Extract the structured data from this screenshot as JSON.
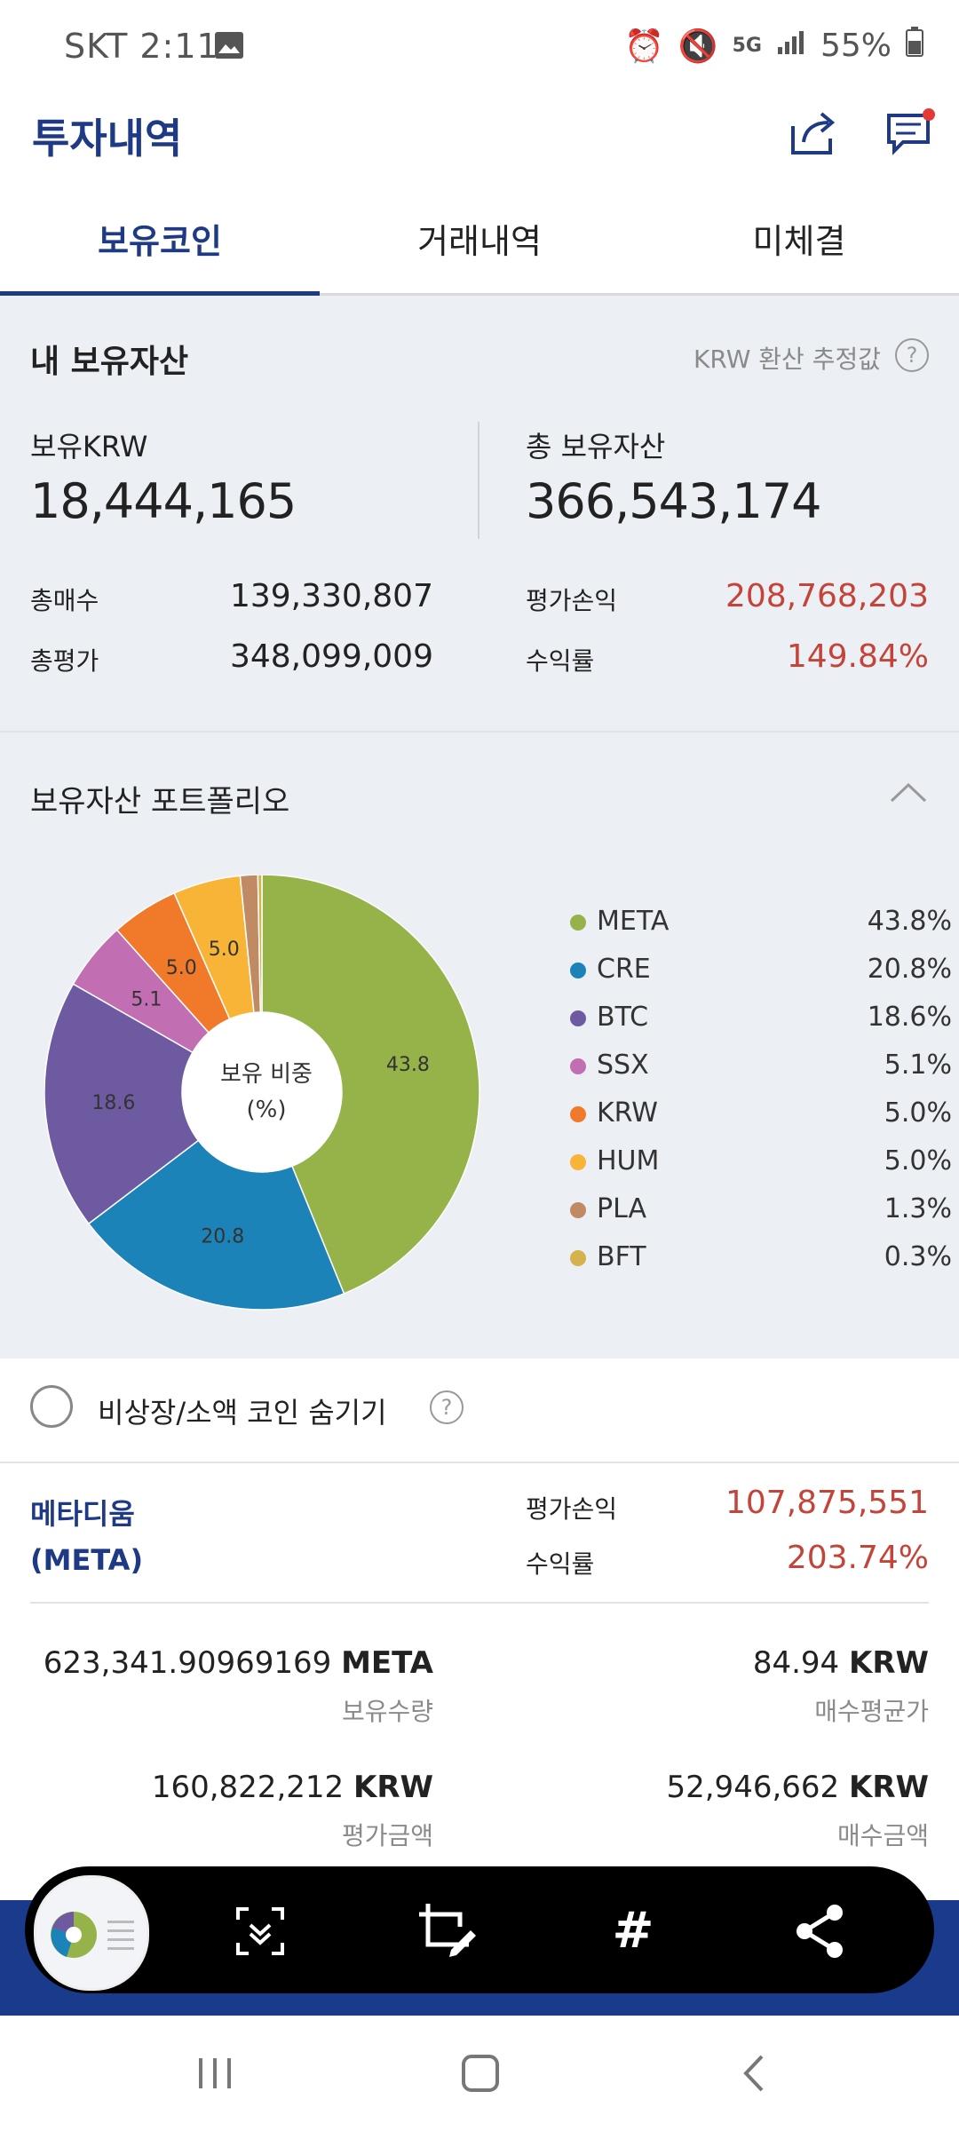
{
  "status_bar": {
    "carrier_time": "SKT 2:11",
    "battery": "55%",
    "network": "5G"
  },
  "header": {
    "title": "투자내역"
  },
  "tabs": [
    "보유코인",
    "거래내역",
    "미체결"
  ],
  "summary": {
    "title": "내 보유자산",
    "note": "KRW 환산 추정값",
    "krw_label": "보유KRW",
    "krw_value": "18,444,165",
    "total_label": "총 보유자산",
    "total_value": "366,543,174",
    "buy_label": "총매수",
    "buy_value": "139,330,807",
    "eval_label": "총평가",
    "eval_value": "348,099,009",
    "pl_label": "평가손익",
    "pl_value": "208,768,203",
    "rate_label": "수익률",
    "rate_value": "149.84%"
  },
  "portfolio": {
    "title": "보유자산 포트폴리오",
    "center_label_1": "보유 비중",
    "center_label_2": "(%)",
    "slice_labels": [
      "43.8",
      "20.8",
      "18.6",
      "5.1",
      "5.0",
      "5.0"
    ],
    "legend": [
      {
        "name": "META",
        "pct": "43.8%",
        "color": "#96b34a"
      },
      {
        "name": "CRE",
        "pct": "20.8%",
        "color": "#1b83b8"
      },
      {
        "name": "BTC",
        "pct": "18.6%",
        "color": "#6e5aa0"
      },
      {
        "name": "SSX",
        "pct": "5.1%",
        "color": "#c26eb2"
      },
      {
        "name": "KRW",
        "pct": "5.0%",
        "color": "#f07a2a"
      },
      {
        "name": "HUM",
        "pct": "5.0%",
        "color": "#f8b437"
      },
      {
        "name": "PLA",
        "pct": "1.3%",
        "color": "#c08a64"
      },
      {
        "name": "BFT",
        "pct": "0.3%",
        "color": "#d4b24e"
      }
    ]
  },
  "chart_data": {
    "type": "pie",
    "categories": [
      "META",
      "CRE",
      "BTC",
      "SSX",
      "KRW",
      "HUM",
      "PLA",
      "BFT"
    ],
    "values": [
      43.8,
      20.8,
      18.6,
      5.1,
      5.0,
      5.0,
      1.3,
      0.3
    ],
    "title": "보유자산 포트폴리오"
  },
  "filter": {
    "label": "비상장/소액 코인 숨기기"
  },
  "holding": {
    "name_ko": "메타디움",
    "symbol": "(META)",
    "pl_label": "평가손익",
    "pl_value": "107,875,551",
    "rate_label": "수익률",
    "rate_value": "203.74%",
    "qty_value": "623,341.90969169",
    "qty_unit": "META",
    "qty_label": "보유수량",
    "avg_value": "84.94",
    "avg_unit": "KRW",
    "avg_label": "매수평균가",
    "eval_value": "160,822,212",
    "eval_unit": "KRW",
    "eval_label": "평가금액",
    "buy_value": "52,946,662",
    "buy_unit": "KRW",
    "buy_label": "매수금액"
  }
}
